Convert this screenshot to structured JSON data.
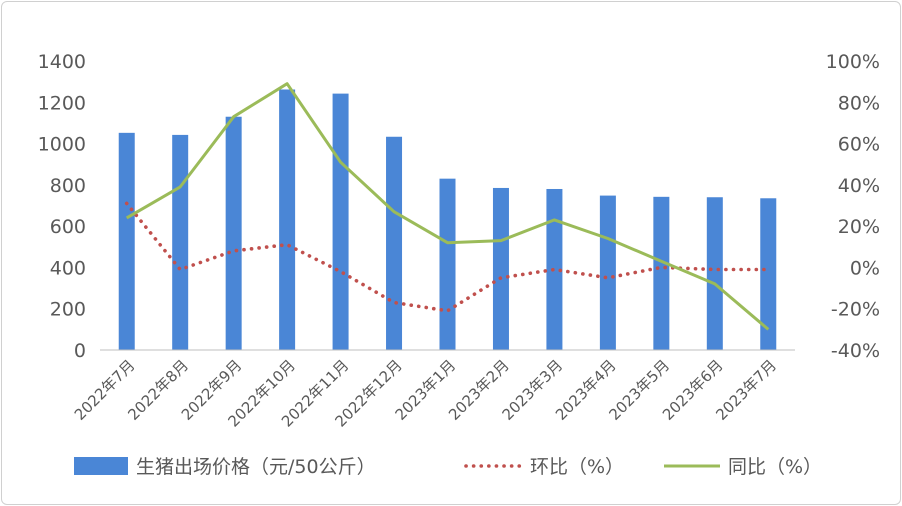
{
  "chart_data": {
    "type": "bar",
    "categories": [
      "2022年7月",
      "2022年8月",
      "2022年9月",
      "2022年10月",
      "2022年11月",
      "2022年12月",
      "2023年1月",
      "2023年2月",
      "2023年3月",
      "2023年4月",
      "2023年5月",
      "2023年6月",
      "2023年7月"
    ],
    "series": [
      {
        "name": "生猪出场价格（元/50公斤）",
        "type": "bar",
        "axis": "left",
        "color": "#4A86D6",
        "values": [
          1052,
          1042,
          1130,
          1262,
          1242,
          1033,
          830,
          785,
          780,
          748,
          742,
          740,
          735
        ]
      },
      {
        "name": "环比（%）",
        "type": "line",
        "style": "dotted",
        "axis": "right",
        "color": "#C0504D",
        "values": [
          31,
          -1,
          8,
          11,
          -2,
          -17,
          -21,
          -5,
          -1,
          -5,
          0,
          -1,
          -1
        ]
      },
      {
        "name": "同比（%）",
        "type": "line",
        "style": "solid",
        "axis": "right",
        "color": "#9BBB59",
        "values": [
          24,
          39,
          73,
          89,
          51,
          27,
          12,
          13,
          23,
          14,
          3,
          -8,
          -30
        ]
      }
    ],
    "y_left": {
      "min": 0,
      "max": 1400,
      "ticks": [
        "0",
        "200",
        "400",
        "600",
        "800",
        "1000",
        "1200",
        "1400"
      ]
    },
    "y_right": {
      "min": -40,
      "max": 100,
      "ticks": [
        "-40%",
        "-20%",
        "0%",
        "20%",
        "40%",
        "60%",
        "80%",
        "100%"
      ]
    },
    "grid": false,
    "legend_position": "bottom"
  }
}
